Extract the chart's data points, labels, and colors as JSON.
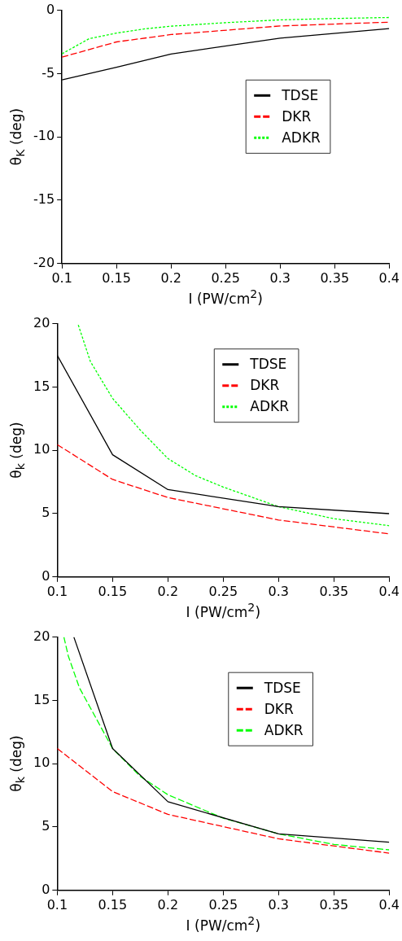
{
  "chart_data": [
    {
      "type": "line",
      "xlabel": "I (PW/cm$^{2}$)",
      "ylabel": "θ$_{K}$ (deg)",
      "xlim": [
        0.1,
        0.4
      ],
      "xticks": [
        0.1,
        0.15,
        0.2,
        0.25,
        0.3,
        0.35,
        0.4
      ],
      "ylim": [
        -20,
        0
      ],
      "yticks": [
        -20,
        -15,
        -10,
        -5,
        0
      ],
      "grid": false,
      "legend": "right",
      "marker": "none",
      "series": [
        {
          "name": "TDSE",
          "color": "#000000",
          "line_style": "solid",
          "x": [
            0.1,
            0.15,
            0.2,
            0.3,
            0.4
          ],
          "values": [
            -5.5,
            -4.5,
            -3.45,
            -2.2,
            -1.45
          ]
        },
        {
          "name": "DKR",
          "color": "#ff0000",
          "line_style": "dashed",
          "x": [
            0.1,
            0.15,
            0.2,
            0.3,
            0.4
          ],
          "values": [
            -3.7,
            -2.5,
            -1.92,
            -1.24,
            -0.94
          ]
        },
        {
          "name": "ADKR",
          "color": "#00ff00",
          "line_style": "dotted",
          "x": [
            0.1,
            0.125,
            0.15,
            0.175,
            0.2,
            0.25,
            0.3,
            0.35,
            0.4
          ],
          "values": [
            -3.44,
            -2.24,
            -1.8,
            -1.48,
            -1.26,
            -0.98,
            -0.76,
            -0.65,
            -0.57
          ]
        }
      ]
    },
    {
      "type": "line",
      "xlabel": "I (PW/cm$^{2}$)",
      "ylabel": "θ$_{k}$ (deg)",
      "xlim": [
        0.1,
        0.4
      ],
      "xticks": [
        0.1,
        0.15,
        0.2,
        0.25,
        0.3,
        0.35,
        0.4
      ],
      "ylim": [
        0,
        20
      ],
      "yticks": [
        0,
        5,
        10,
        15,
        20
      ],
      "grid": false,
      "legend": "top",
      "marker": "none",
      "series": [
        {
          "name": "TDSE",
          "color": "#000000",
          "line_style": "solid",
          "x": [
            0.1,
            0.15,
            0.2,
            0.3,
            0.4
          ],
          "values": [
            17.5,
            9.65,
            6.9,
            5.55,
            5.0
          ]
        },
        {
          "name": "DKR",
          "color": "#ff0000",
          "line_style": "dashed",
          "x": [
            0.1,
            0.15,
            0.2,
            0.3,
            0.4
          ],
          "values": [
            10.45,
            7.7,
            6.27,
            4.5,
            3.4
          ]
        },
        {
          "name": "ADKR",
          "color": "#00ff00",
          "line_style": "dotted",
          "x": [
            0.119,
            0.13,
            0.15,
            0.175,
            0.2,
            0.225,
            0.25,
            0.3,
            0.35,
            0.4
          ],
          "values": [
            19.9,
            17.0,
            14.1,
            11.6,
            9.35,
            8.0,
            7.1,
            5.55,
            4.6,
            4.05
          ]
        }
      ]
    },
    {
      "type": "line",
      "xlabel": "I (PW/cm$^{2}$)",
      "ylabel": "θ$_{k}$ (deg)",
      "xlim": [
        0.1,
        0.4
      ],
      "xticks": [
        0.1,
        0.15,
        0.2,
        0.25,
        0.3,
        0.35,
        0.4
      ],
      "ylim": [
        0,
        20
      ],
      "yticks": [
        0,
        5,
        10,
        15,
        20
      ],
      "grid": false,
      "legend": "top right",
      "marker": "none",
      "series": [
        {
          "name": "TDSE",
          "color": "#000000",
          "line_style": "solid",
          "x": [
            0.115,
            0.15,
            0.2,
            0.3,
            0.4
          ],
          "values": [
            20,
            11.2,
            7.0,
            4.46,
            3.8
          ]
        },
        {
          "name": "DKR",
          "color": "#ff0000",
          "line_style": "dashed",
          "x": [
            0.1,
            0.15,
            0.2,
            0.3,
            0.4
          ],
          "values": [
            11.2,
            7.8,
            6.0,
            4.07,
            2.94
          ]
        },
        {
          "name": "ADKR",
          "color": "#00ff00",
          "line_style": "dashed",
          "x": [
            0.106,
            0.11,
            0.12,
            0.13,
            0.15,
            0.175,
            0.2,
            0.25,
            0.3,
            0.35,
            0.4
          ],
          "values": [
            20,
            18.5,
            16.0,
            14.4,
            11.2,
            9.0,
            7.55,
            5.7,
            4.46,
            3.63,
            3.2
          ]
        }
      ]
    }
  ]
}
